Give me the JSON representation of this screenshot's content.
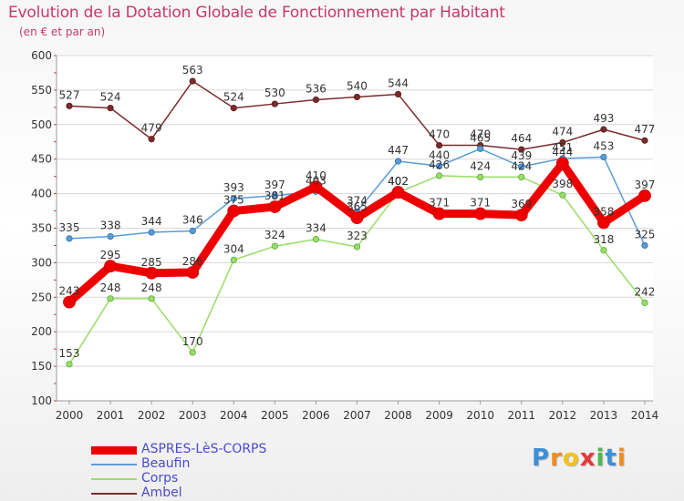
{
  "chart_data": {
    "type": "line",
    "title": "Evolution de la Dotation Globale de Fonctionnement par Habitant",
    "subtitle": "(en € et par an)",
    "x": [
      "2000",
      "2001",
      "2002",
      "2003",
      "2004",
      "2005",
      "2006",
      "2007",
      "2008",
      "2009",
      "2010",
      "2011",
      "2012",
      "2013",
      "2014"
    ],
    "ylim": [
      100,
      600
    ],
    "yticks": [
      100,
      150,
      200,
      250,
      300,
      350,
      400,
      450,
      500,
      550,
      600
    ],
    "grid": "horizontal",
    "legend_position": "bottom-left",
    "series": [
      {
        "name": "ASPRES-LèS-CORPS",
        "color": "#ee0000",
        "values": [
          243,
          295,
          285,
          286,
          375,
          381,
          410,
          365,
          402,
          371,
          371,
          369,
          444,
          358,
          397
        ]
      },
      {
        "name": "Beaufin",
        "color": "#5b9bd5",
        "values": [
          335,
          338,
          344,
          346,
          393,
          397,
          403,
          374,
          447,
          440,
          465,
          439,
          451,
          453,
          325
        ]
      },
      {
        "name": "Corps",
        "color": "#99dd66",
        "values": [
          153,
          248,
          248,
          170,
          304,
          324,
          334,
          323,
          402,
          426,
          424,
          424,
          398,
          318,
          242
        ]
      },
      {
        "name": "Ambel",
        "color": "#7a2b2b",
        "values": [
          527,
          524,
          479,
          563,
          524,
          530,
          536,
          540,
          544,
          470,
          470,
          464,
          474,
          493,
          477
        ]
      }
    ]
  },
  "brand": {
    "letters": [
      "P",
      "r",
      "o",
      "x",
      "i",
      "t",
      "i"
    ],
    "colors": [
      "#3b8fd8",
      "#f08a1c",
      "#f2c21a",
      "#e23a3a",
      "#4fb84f",
      "#3b8fd8",
      "#f08a1c"
    ]
  }
}
